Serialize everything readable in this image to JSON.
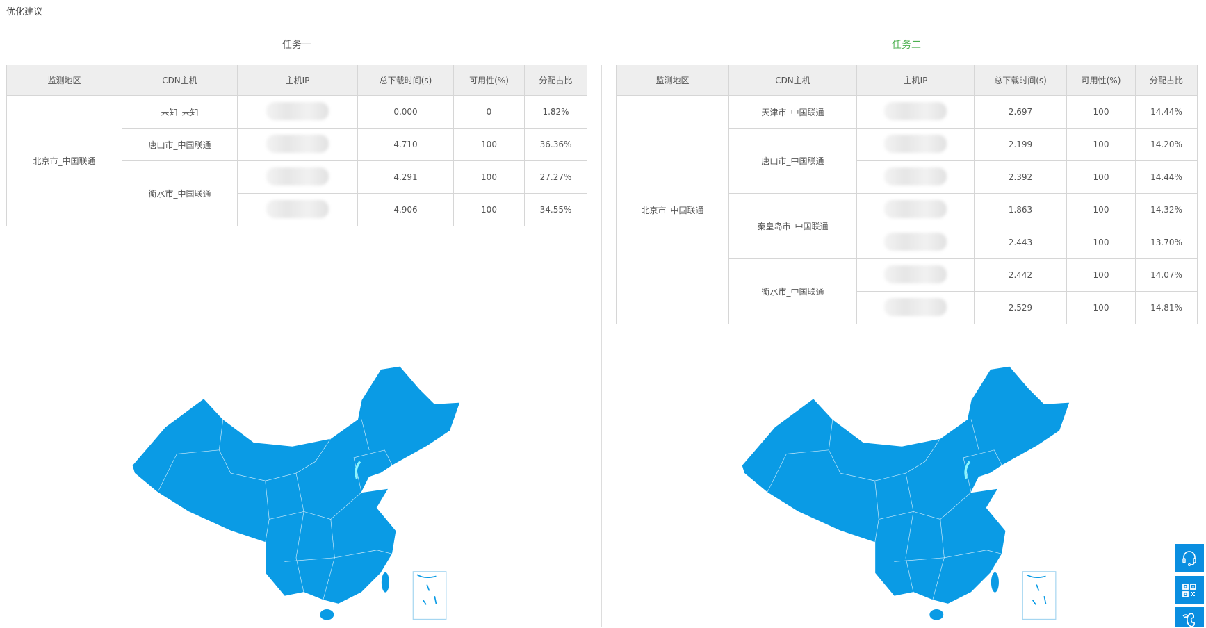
{
  "page_title": "优化建议",
  "headers": [
    "监测地区",
    "CDN主机",
    "主机IP",
    "总下载时间(s)",
    "可用性(%)",
    "分配占比"
  ],
  "colors": {
    "map_fill": "#0a9be5",
    "task2_title": "#4cb050",
    "side_buttons": "#0a8ee0"
  },
  "tasks": [
    {
      "title": "任务一",
      "region": "北京市_中国联通",
      "hosts": [
        {
          "name": "未知_未知",
          "rows": [
            {
              "time": "0.000",
              "avail": "0",
              "share": "1.82%"
            }
          ]
        },
        {
          "name": "唐山市_中国联通",
          "rows": [
            {
              "time": "4.710",
              "avail": "100",
              "share": "36.36%"
            }
          ]
        },
        {
          "name": "衡水市_中国联通",
          "rows": [
            {
              "time": "4.291",
              "avail": "100",
              "share": "27.27%"
            },
            {
              "time": "4.906",
              "avail": "100",
              "share": "34.55%"
            }
          ]
        }
      ]
    },
    {
      "title": "任务二",
      "region": "北京市_中国联通",
      "hosts": [
        {
          "name": "天津市_中国联通",
          "rows": [
            {
              "time": "2.697",
              "avail": "100",
              "share": "14.44%"
            }
          ]
        },
        {
          "name": "唐山市_中国联通",
          "rows": [
            {
              "time": "2.199",
              "avail": "100",
              "share": "14.20%"
            },
            {
              "time": "2.392",
              "avail": "100",
              "share": "14.44%"
            }
          ]
        },
        {
          "name": "秦皇岛市_中国联通",
          "rows": [
            {
              "time": "1.863",
              "avail": "100",
              "share": "14.32%"
            },
            {
              "time": "2.443",
              "avail": "100",
              "share": "13.70%"
            }
          ]
        },
        {
          "name": "衡水市_中国联通",
          "rows": [
            {
              "time": "2.442",
              "avail": "100",
              "share": "14.07%"
            },
            {
              "time": "2.529",
              "avail": "100",
              "share": "14.81%"
            }
          ]
        }
      ]
    }
  ],
  "side_buttons": [
    "headset-icon",
    "qr-code-icon",
    "phone-icon"
  ]
}
